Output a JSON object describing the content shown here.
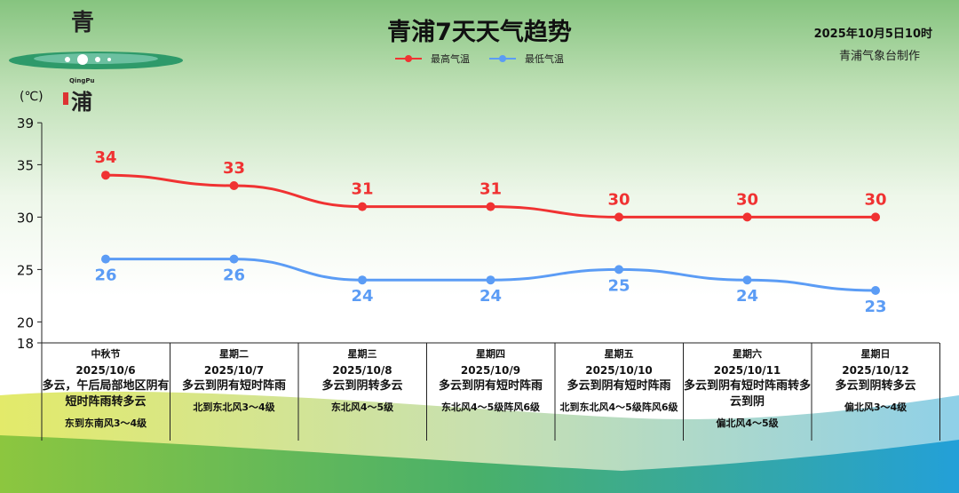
{
  "header": {
    "title": "青浦7天天气趋势",
    "issued": "2025年10月5日10时",
    "maker": "青浦气象台制作",
    "logo_text": [
      "青",
      "QingPu",
      "浦"
    ]
  },
  "colors": {
    "high": "#f03232",
    "low": "#5b9cf5"
  },
  "chart_data": {
    "type": "line",
    "title": "青浦7天天气趋势",
    "ylabel": "(℃)",
    "ylim": [
      18,
      39
    ],
    "yticks": [
      18,
      20,
      25,
      30,
      35,
      39
    ],
    "legend": "top-center",
    "categories": [
      "2025/10/6",
      "2025/10/7",
      "2025/10/8",
      "2025/10/9",
      "2025/10/10",
      "2025/10/11",
      "2025/10/12"
    ],
    "series": [
      {
        "name": "最高气温",
        "values": [
          34,
          33,
          31,
          31,
          30,
          30,
          30
        ]
      },
      {
        "name": "最低气温",
        "values": [
          26,
          26,
          24,
          24,
          25,
          24,
          23
        ]
      }
    ]
  },
  "days": [
    {
      "weekday": "中秋节",
      "date": "2025/10/6",
      "weather": "多云，午后局部地区阴有短时阵雨转多云",
      "wind": "东到东南风3～4级"
    },
    {
      "weekday": "星期二",
      "date": "2025/10/7",
      "weather": "多云到阴有短时阵雨",
      "wind": "北到东北风3～4级"
    },
    {
      "weekday": "星期三",
      "date": "2025/10/8",
      "weather": "多云到阴转多云",
      "wind": "东北风4～5级"
    },
    {
      "weekday": "星期四",
      "date": "2025/10/9",
      "weather": "多云到阴有短时阵雨",
      "wind": "东北风4～5级阵风6级"
    },
    {
      "weekday": "星期五",
      "date": "2025/10/10",
      "weather": "多云到阴有短时阵雨",
      "wind": "北到东北风4～5级阵风6级"
    },
    {
      "weekday": "星期六",
      "date": "2025/10/11",
      "weather": "多云到阴有短时阵雨转多云到阴",
      "wind": "偏北风4～5级"
    },
    {
      "weekday": "星期日",
      "date": "2025/10/12",
      "weather": "多云到阴转多云",
      "wind": "偏北风3～4级"
    }
  ]
}
